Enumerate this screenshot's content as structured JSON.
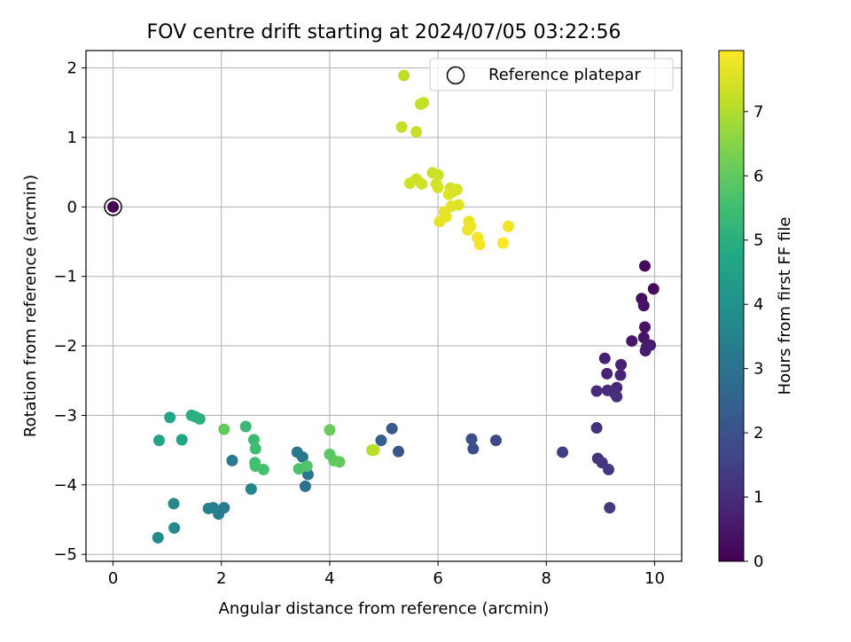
{
  "chart_data": {
    "type": "scatter",
    "title": "FOV centre drift starting at 2024/07/05 03:22:56",
    "xlabel": "Angular distance from reference (arcmin)",
    "ylabel": "Rotation from reference (arcmin)",
    "xlim": [
      -0.5,
      10.5
    ],
    "ylim": [
      -5.1,
      2.25
    ],
    "xticks": [
      0,
      2,
      4,
      6,
      8,
      10
    ],
    "yticks": [
      -5,
      -4,
      -3,
      -2,
      -1,
      0,
      1,
      2
    ],
    "grid": true,
    "legend": {
      "location": "top-right",
      "entries": [
        "Reference platepar"
      ]
    },
    "colorbar": {
      "label": "Hours from first FF file",
      "colormap": "viridis",
      "range": [
        0,
        7.95
      ],
      "ticks": [
        0,
        1,
        2,
        3,
        4,
        5,
        6,
        7
      ]
    },
    "reference_point": {
      "x": 0,
      "y": 0,
      "hours": 0
    },
    "points": [
      {
        "x": 9.82,
        "y": -0.85,
        "h": 0.2
      },
      {
        "x": 9.98,
        "y": -1.18,
        "h": 0.25
      },
      {
        "x": 9.76,
        "y": -1.32,
        "h": 0.3
      },
      {
        "x": 9.8,
        "y": -1.42,
        "h": 0.35
      },
      {
        "x": 9.82,
        "y": -1.73,
        "h": 0.4
      },
      {
        "x": 9.8,
        "y": -1.88,
        "h": 0.45
      },
      {
        "x": 9.58,
        "y": -1.93,
        "h": 0.5
      },
      {
        "x": 9.92,
        "y": -1.99,
        "h": 0.55
      },
      {
        "x": 9.85,
        "y": -2.02,
        "h": 0.6
      },
      {
        "x": 9.83,
        "y": -2.07,
        "h": 0.65
      },
      {
        "x": 9.08,
        "y": -2.18,
        "h": 0.7
      },
      {
        "x": 9.38,
        "y": -2.27,
        "h": 0.75
      },
      {
        "x": 9.12,
        "y": -2.4,
        "h": 0.8
      },
      {
        "x": 9.37,
        "y": -2.42,
        "h": 0.85
      },
      {
        "x": 9.3,
        "y": -2.6,
        "h": 0.9
      },
      {
        "x": 8.93,
        "y": -2.65,
        "h": 0.95
      },
      {
        "x": 9.13,
        "y": -2.64,
        "h": 1.0
      },
      {
        "x": 9.25,
        "y": -2.67,
        "h": 1.05
      },
      {
        "x": 9.3,
        "y": -2.73,
        "h": 1.1
      },
      {
        "x": 8.93,
        "y": -3.18,
        "h": 1.15
      },
      {
        "x": 8.95,
        "y": -3.62,
        "h": 1.2
      },
      {
        "x": 9.03,
        "y": -3.68,
        "h": 1.25
      },
      {
        "x": 9.15,
        "y": -3.78,
        "h": 1.3
      },
      {
        "x": 9.17,
        "y": -4.33,
        "h": 1.35
      },
      {
        "x": 8.3,
        "y": -3.53,
        "h": 1.45
      },
      {
        "x": 7.07,
        "y": -3.36,
        "h": 1.7
      },
      {
        "x": 6.65,
        "y": -3.48,
        "h": 1.85
      },
      {
        "x": 6.62,
        "y": -3.34,
        "h": 1.95
      },
      {
        "x": 5.27,
        "y": -3.52,
        "h": 2.15
      },
      {
        "x": 5.15,
        "y": -3.19,
        "h": 2.25
      },
      {
        "x": 4.95,
        "y": -3.36,
        "h": 2.4
      },
      {
        "x": 3.55,
        "y": -4.02,
        "h": 3.0
      },
      {
        "x": 3.6,
        "y": -3.85,
        "h": 3.05
      },
      {
        "x": 3.5,
        "y": -3.6,
        "h": 3.1
      },
      {
        "x": 3.4,
        "y": -3.53,
        "h": 3.15
      },
      {
        "x": 2.2,
        "y": -3.65,
        "h": 3.2
      },
      {
        "x": 2.05,
        "y": -4.33,
        "h": 3.3
      },
      {
        "x": 1.95,
        "y": -4.42,
        "h": 3.35
      },
      {
        "x": 1.85,
        "y": -4.33,
        "h": 3.4
      },
      {
        "x": 1.76,
        "y": -4.34,
        "h": 3.45
      },
      {
        "x": 2.55,
        "y": -4.06,
        "h": 3.6
      },
      {
        "x": 1.12,
        "y": -4.27,
        "h": 3.7
      },
      {
        "x": 1.13,
        "y": -4.62,
        "h": 3.75
      },
      {
        "x": 0.83,
        "y": -4.76,
        "h": 3.8
      },
      {
        "x": 0.85,
        "y": -3.36,
        "h": 4.6
      },
      {
        "x": 1.27,
        "y": -3.35,
        "h": 4.65
      },
      {
        "x": 1.05,
        "y": -3.03,
        "h": 4.7
      },
      {
        "x": 1.45,
        "y": -3.0,
        "h": 4.9
      },
      {
        "x": 1.52,
        "y": -3.02,
        "h": 5.0
      },
      {
        "x": 1.6,
        "y": -3.05,
        "h": 5.05
      },
      {
        "x": 2.45,
        "y": -3.16,
        "h": 5.3
      },
      {
        "x": 2.6,
        "y": -3.35,
        "h": 5.4
      },
      {
        "x": 2.63,
        "y": -3.48,
        "h": 5.45
      },
      {
        "x": 2.62,
        "y": -3.68,
        "h": 5.5
      },
      {
        "x": 2.63,
        "y": -3.73,
        "h": 5.55
      },
      {
        "x": 2.78,
        "y": -3.78,
        "h": 5.6
      },
      {
        "x": 3.43,
        "y": -3.77,
        "h": 5.7
      },
      {
        "x": 3.58,
        "y": -3.73,
        "h": 5.75
      },
      {
        "x": 4.0,
        "y": -3.56,
        "h": 5.9
      },
      {
        "x": 4.08,
        "y": -3.65,
        "h": 5.95
      },
      {
        "x": 4.18,
        "y": -3.67,
        "h": 6.0
      },
      {
        "x": 2.05,
        "y": -3.2,
        "h": 6.05
      },
      {
        "x": 4.0,
        "y": -3.21,
        "h": 6.1
      },
      {
        "x": 4.78,
        "y": -3.5,
        "h": 7.05
      },
      {
        "x": 4.82,
        "y": -3.5,
        "h": 7.1
      },
      {
        "x": 5.37,
        "y": 1.89,
        "h": 7.15
      },
      {
        "x": 5.73,
        "y": 1.5,
        "h": 7.2
      },
      {
        "x": 5.68,
        "y": 1.48,
        "h": 7.22
      },
      {
        "x": 5.33,
        "y": 1.15,
        "h": 7.25
      },
      {
        "x": 5.6,
        "y": 1.08,
        "h": 7.28
      },
      {
        "x": 5.9,
        "y": 0.49,
        "h": 7.3
      },
      {
        "x": 6.0,
        "y": 0.46,
        "h": 7.32
      },
      {
        "x": 5.6,
        "y": 0.4,
        "h": 7.35
      },
      {
        "x": 5.48,
        "y": 0.34,
        "h": 7.38
      },
      {
        "x": 5.7,
        "y": 0.33,
        "h": 7.4
      },
      {
        "x": 5.97,
        "y": 0.33,
        "h": 7.42
      },
      {
        "x": 6.0,
        "y": 0.28,
        "h": 7.45
      },
      {
        "x": 6.23,
        "y": 0.27,
        "h": 7.48
      },
      {
        "x": 6.35,
        "y": 0.25,
        "h": 7.5
      },
      {
        "x": 6.28,
        "y": 0.22,
        "h": 7.52
      },
      {
        "x": 6.2,
        "y": 0.18,
        "h": 7.55
      },
      {
        "x": 6.38,
        "y": 0.03,
        "h": 7.58
      },
      {
        "x": 6.25,
        "y": 0.01,
        "h": 7.6
      },
      {
        "x": 6.12,
        "y": -0.07,
        "h": 7.62
      },
      {
        "x": 6.15,
        "y": -0.14,
        "h": 7.65
      },
      {
        "x": 6.03,
        "y": -0.21,
        "h": 7.68
      },
      {
        "x": 6.57,
        "y": -0.21,
        "h": 7.7
      },
      {
        "x": 6.6,
        "y": -0.28,
        "h": 7.72
      },
      {
        "x": 6.55,
        "y": -0.33,
        "h": 7.75
      },
      {
        "x": 7.3,
        "y": -0.28,
        "h": 7.8
      },
      {
        "x": 6.73,
        "y": -0.44,
        "h": 7.82
      },
      {
        "x": 6.77,
        "y": -0.54,
        "h": 7.85
      },
      {
        "x": 7.2,
        "y": -0.52,
        "h": 7.9
      }
    ]
  }
}
